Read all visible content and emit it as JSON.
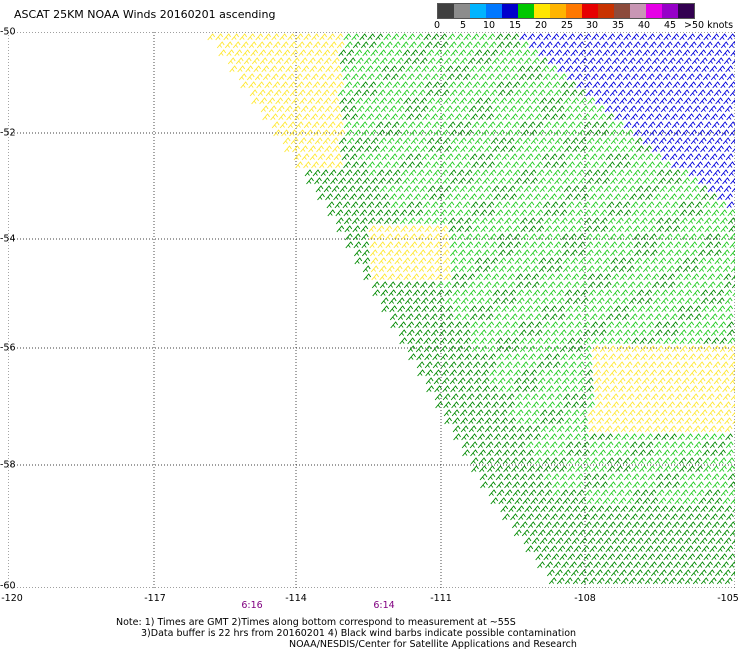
{
  "title": "ASCAT 25KM NOAA Winds 20160201 ascending",
  "legend": {
    "colors": [
      "#404040",
      "#8c8c8c",
      "#00b4ff",
      "#0078ff",
      "#0000cc",
      "#00c800",
      "#ffe600",
      "#ffb400",
      "#ff7800",
      "#e60000",
      "#c83200",
      "#8c4b3c",
      "#c896b4",
      "#e600e6",
      "#9600c8",
      "#320050"
    ],
    "labels": [
      "0",
      "5",
      "10",
      "15",
      "20",
      "25",
      "30",
      "35",
      "40",
      "45",
      ">50 knots"
    ]
  },
  "axes": {
    "y_labels": [
      "-50",
      "-52",
      "-54",
      "-56",
      "-58",
      "-60"
    ],
    "x_labels": [
      "-120",
      "-117",
      "-114",
      "-111",
      "-108",
      "-105"
    ]
  },
  "times": [
    "6:16",
    "6:14"
  ],
  "notes": [
    "Note: 1) Times are GMT 2)Times along bottom correspond to measurement at ~55S",
    "3)Data buffer is 22 hrs from 20160201 4) Black wind barbs indicate possible contamination",
    "NOAA/NESDIS/Center for Satellite Applications and Research"
  ],
  "wind_colors": {
    "yellow": "#ffe833",
    "light_green": "#22cc22",
    "dark_green": "#008a00",
    "blue": "#0000dd",
    "grid": "#000000"
  }
}
